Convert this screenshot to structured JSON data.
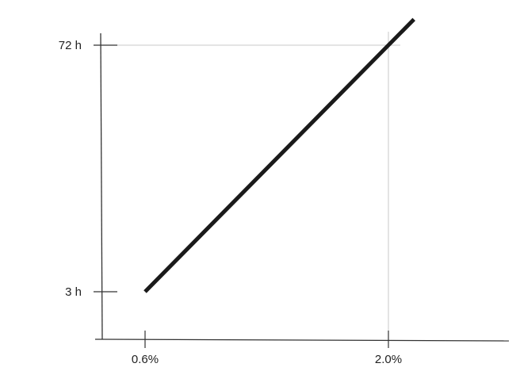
{
  "chart_data": {
    "type": "line",
    "title": "",
    "xlabel": "",
    "ylabel": "",
    "x_ticks": [
      "0.6%",
      "2.0%"
    ],
    "y_ticks": [
      "3 h",
      "72 h"
    ],
    "series": [
      {
        "x": [
          0.6,
          2.0
        ],
        "y": [
          3,
          72
        ],
        "extends_beyond_last_point": true
      }
    ],
    "grid": false,
    "colors": {
      "line": "#1a1a1a",
      "axis": "#333333",
      "reference": "#c8c8c8"
    }
  }
}
